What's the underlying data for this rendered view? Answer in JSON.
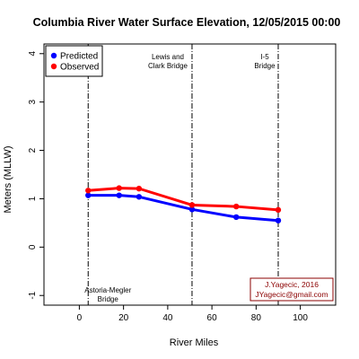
{
  "chart_data": {
    "type": "line",
    "title": "Columbia River Water Surface Elevation,  12/05/2015 00:00",
    "xlabel": "River Miles",
    "ylabel": "Meters (MLLW)",
    "xlim": [
      -16,
      116
    ],
    "ylim": [
      -1.2,
      4.2
    ],
    "xticks": [
      0,
      20,
      40,
      60,
      80,
      100
    ],
    "yticks": [
      -1,
      0,
      1,
      2,
      3,
      4
    ],
    "grid": false,
    "legend_position": "top-left",
    "series": [
      {
        "name": "Predicted",
        "color": "#0000ff",
        "x": [
          4,
          18,
          27,
          51,
          71,
          90
        ],
        "values": [
          1.07,
          1.07,
          1.04,
          0.78,
          0.62,
          0.55
        ]
      },
      {
        "name": "Observed",
        "color": "#ff0000",
        "x": [
          4,
          18,
          27,
          51,
          71,
          90
        ],
        "values": [
          1.17,
          1.22,
          1.21,
          0.87,
          0.84,
          0.77
        ]
      }
    ],
    "reference_lines": [
      {
        "x": 4,
        "label_line1": "Astoria-Megler",
        "label_line2": "Bridge",
        "label_at": "bottom"
      },
      {
        "x": 51,
        "label_line1": "Lewis and",
        "label_line2": "Clark Bridge",
        "label_at": "top"
      },
      {
        "x": 90,
        "label_line1": "I-5",
        "label_line2": "Bridge",
        "label_at": "top"
      }
    ],
    "credit": {
      "line1": "J.Yagecic, 2016",
      "line2": "JYagecic@gmail.com",
      "color": "#8b0000"
    }
  }
}
